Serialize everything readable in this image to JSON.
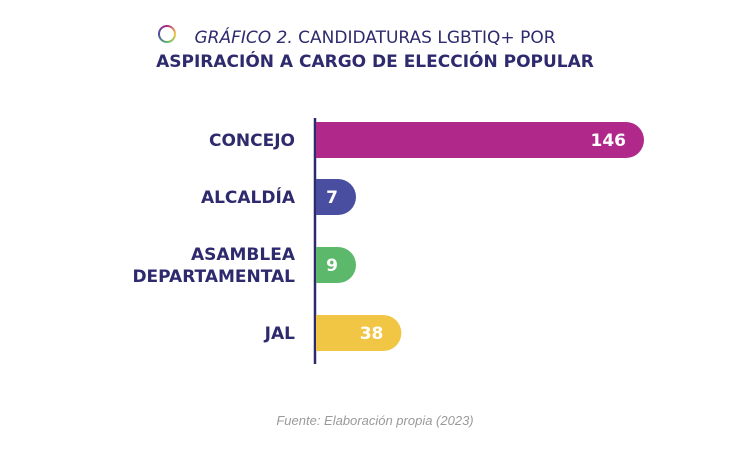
{
  "title": {
    "lead": "GRÁFICO 2.",
    "line1_rest": " CANDIDATURAS LGBTIQ+ POR",
    "line2": "ASPIRACIÓN A CARGO DE ELECCIÓN POPULAR"
  },
  "source": "Fuente: Elaboración propia (2023)",
  "chart_data": {
    "type": "bar",
    "orientation": "horizontal",
    "categories": [
      [
        "CONCEJO"
      ],
      [
        "ALCALDÍA"
      ],
      [
        "ASAMBLEA",
        "DEPARTAMENTAL"
      ],
      [
        "JAL"
      ]
    ],
    "values": [
      146,
      7,
      9,
      38
    ],
    "colors": [
      "#b0288a",
      "#4a4ea0",
      "#5cb86a",
      "#f0c644"
    ],
    "value_labels": true,
    "grid": false,
    "legend": "none"
  }
}
